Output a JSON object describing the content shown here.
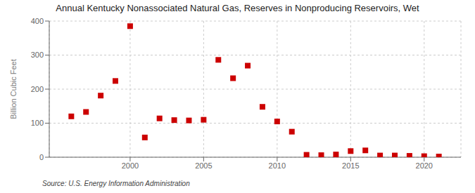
{
  "chart_data": {
    "type": "scatter",
    "title": "Annual Kentucky Nonassociated Natural Gas, Reserves in Nonproducing Reservoirs, Wet",
    "ylabel": "Billion Cubic Feet",
    "source": "Source: U.S. Energy Information Administration",
    "x": [
      1996,
      1997,
      1998,
      1999,
      2000,
      2001,
      2002,
      2003,
      2004,
      2005,
      2006,
      2007,
      2008,
      2009,
      2010,
      2011,
      2012,
      2013,
      2014,
      2015,
      2016,
      2017,
      2018,
      2019,
      2020,
      2021
    ],
    "values": [
      120,
      133,
      181,
      224,
      385,
      58,
      114,
      109,
      108,
      110,
      286,
      232,
      269,
      148,
      105,
      75,
      7,
      6,
      8,
      18,
      20,
      5,
      5,
      4,
      3,
      2
    ],
    "color": "#cc0000",
    "marker": "square",
    "xlim": [
      1994.5,
      2022.5
    ],
    "xticks": [
      2000,
      2005,
      2010,
      2015,
      2020
    ],
    "ylim": [
      0,
      400
    ],
    "yticks": [
      0,
      100,
      200,
      300,
      400
    ],
    "grid": true
  }
}
